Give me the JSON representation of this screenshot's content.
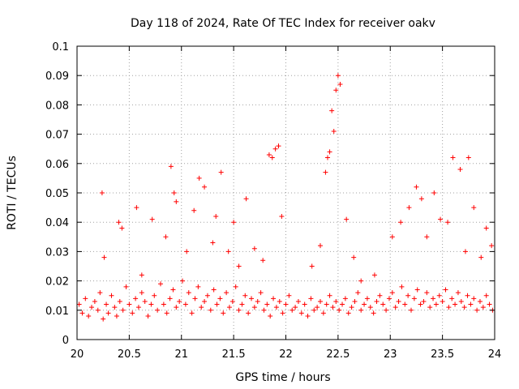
{
  "chart_data": {
    "type": "scatter",
    "title": "Day 118 of 2024, Rate Of TEC Index for receiver oakv",
    "xlabel": "GPS time / hours",
    "ylabel": "ROTI / TECUs",
    "xlim": [
      20,
      24
    ],
    "ylim": [
      0,
      0.1
    ],
    "x_ticks": [
      "20",
      "20.5",
      "21",
      "21.5",
      "22",
      "22.5",
      "23",
      "23.5",
      "24"
    ],
    "y_ticks": [
      "0",
      "0.01",
      "0.02",
      "0.03",
      "0.04",
      "0.05",
      "0.06",
      "0.07",
      "0.08",
      "0.09",
      "0.1"
    ],
    "grid": true,
    "marker": "+",
    "series": [
      {
        "name": "ROTI",
        "color": "#ff0000",
        "x": [
          20.02,
          20.05,
          20.08,
          20.11,
          20.14,
          20.17,
          20.2,
          20.22,
          20.25,
          20.28,
          20.3,
          20.33,
          20.36,
          20.38,
          20.41,
          20.44,
          20.47,
          20.5,
          20.53,
          20.56,
          20.59,
          20.62,
          20.65,
          20.68,
          20.71,
          20.74,
          20.77,
          20.8,
          20.83,
          20.86,
          20.89,
          20.92,
          20.95,
          20.98,
          21.01,
          21.04,
          21.07,
          21.1,
          21.13,
          21.16,
          21.19,
          21.22,
          21.25,
          21.28,
          21.31,
          21.34,
          21.37,
          21.4,
          21.43,
          21.46,
          21.49,
          21.52,
          21.55,
          21.58,
          21.61,
          21.64,
          21.67,
          21.7,
          21.73,
          21.76,
          21.79,
          21.82,
          21.85,
          21.88,
          21.91,
          21.94,
          21.97,
          22.0,
          22.03,
          22.06,
          22.09,
          22.12,
          22.15,
          22.18,
          22.21,
          22.24,
          22.27,
          22.3,
          22.33,
          22.36,
          22.39,
          22.42,
          22.45,
          22.48,
          22.51,
          22.54,
          22.57,
          22.6,
          22.63,
          22.66,
          22.69,
          22.72,
          22.75,
          22.78,
          22.81,
          22.84,
          22.87,
          22.9,
          22.93,
          22.96,
          22.99,
          23.02,
          23.05,
          23.08,
          23.11,
          23.14,
          23.17,
          23.2,
          23.23,
          23.26,
          23.29,
          23.32,
          23.35,
          23.38,
          23.41,
          23.44,
          23.47,
          23.5,
          23.53,
          23.56,
          23.59,
          23.62,
          23.65,
          23.68,
          23.71,
          23.74,
          23.77,
          23.8,
          23.83,
          23.86,
          23.89,
          23.92,
          23.95,
          23.98,
          20.24,
          20.26,
          20.4,
          20.43,
          20.57,
          20.62,
          20.72,
          20.85,
          20.9,
          20.93,
          20.95,
          21.05,
          21.12,
          21.17,
          21.22,
          21.3,
          21.33,
          21.38,
          21.45,
          21.5,
          21.55,
          21.62,
          21.7,
          21.78,
          21.84,
          21.87,
          21.9,
          21.93,
          21.96,
          22.25,
          22.33,
          22.38,
          22.4,
          22.42,
          22.44,
          22.46,
          22.48,
          22.5,
          22.52,
          22.58,
          22.65,
          22.72,
          22.85,
          23.02,
          23.1,
          23.18,
          23.25,
          23.3,
          23.35,
          23.42,
          23.48,
          23.55,
          23.6,
          23.67,
          23.72,
          23.75,
          23.8,
          23.87,
          23.92,
          23.97
        ],
        "y": [
          0.012,
          0.009,
          0.014,
          0.008,
          0.011,
          0.013,
          0.01,
          0.016,
          0.007,
          0.012,
          0.009,
          0.015,
          0.011,
          0.008,
          0.013,
          0.01,
          0.018,
          0.012,
          0.009,
          0.014,
          0.011,
          0.016,
          0.013,
          0.008,
          0.012,
          0.015,
          0.01,
          0.019,
          0.012,
          0.009,
          0.014,
          0.017,
          0.011,
          0.013,
          0.02,
          0.012,
          0.016,
          0.009,
          0.014,
          0.018,
          0.011,
          0.013,
          0.015,
          0.01,
          0.017,
          0.012,
          0.014,
          0.009,
          0.016,
          0.011,
          0.013,
          0.018,
          0.01,
          0.012,
          0.015,
          0.009,
          0.014,
          0.011,
          0.013,
          0.016,
          0.01,
          0.012,
          0.008,
          0.014,
          0.011,
          0.013,
          0.009,
          0.012,
          0.015,
          0.01,
          0.011,
          0.013,
          0.009,
          0.012,
          0.008,
          0.014,
          0.01,
          0.011,
          0.013,
          0.009,
          0.012,
          0.015,
          0.011,
          0.013,
          0.01,
          0.012,
          0.014,
          0.009,
          0.011,
          0.013,
          0.016,
          0.01,
          0.012,
          0.014,
          0.011,
          0.009,
          0.013,
          0.015,
          0.012,
          0.01,
          0.014,
          0.016,
          0.011,
          0.013,
          0.018,
          0.012,
          0.015,
          0.01,
          0.014,
          0.017,
          0.012,
          0.013,
          0.016,
          0.011,
          0.014,
          0.012,
          0.015,
          0.013,
          0.017,
          0.011,
          0.014,
          0.012,
          0.016,
          0.013,
          0.011,
          0.015,
          0.012,
          0.014,
          0.01,
          0.013,
          0.011,
          0.015,
          0.012,
          0.01,
          0.05,
          0.028,
          0.04,
          0.038,
          0.045,
          0.022,
          0.041,
          0.035,
          0.059,
          0.05,
          0.047,
          0.03,
          0.044,
          0.055,
          0.052,
          0.033,
          0.042,
          0.057,
          0.03,
          0.04,
          0.025,
          0.048,
          0.031,
          0.027,
          0.063,
          0.062,
          0.065,
          0.066,
          0.042,
          0.025,
          0.032,
          0.057,
          0.062,
          0.064,
          0.078,
          0.071,
          0.085,
          0.09,
          0.087,
          0.041,
          0.028,
          0.02,
          0.022,
          0.035,
          0.04,
          0.045,
          0.052,
          0.048,
          0.035,
          0.05,
          0.041,
          0.04,
          0.062,
          0.058,
          0.03,
          0.062,
          0.045,
          0.028,
          0.038,
          0.032
        ]
      }
    ]
  }
}
